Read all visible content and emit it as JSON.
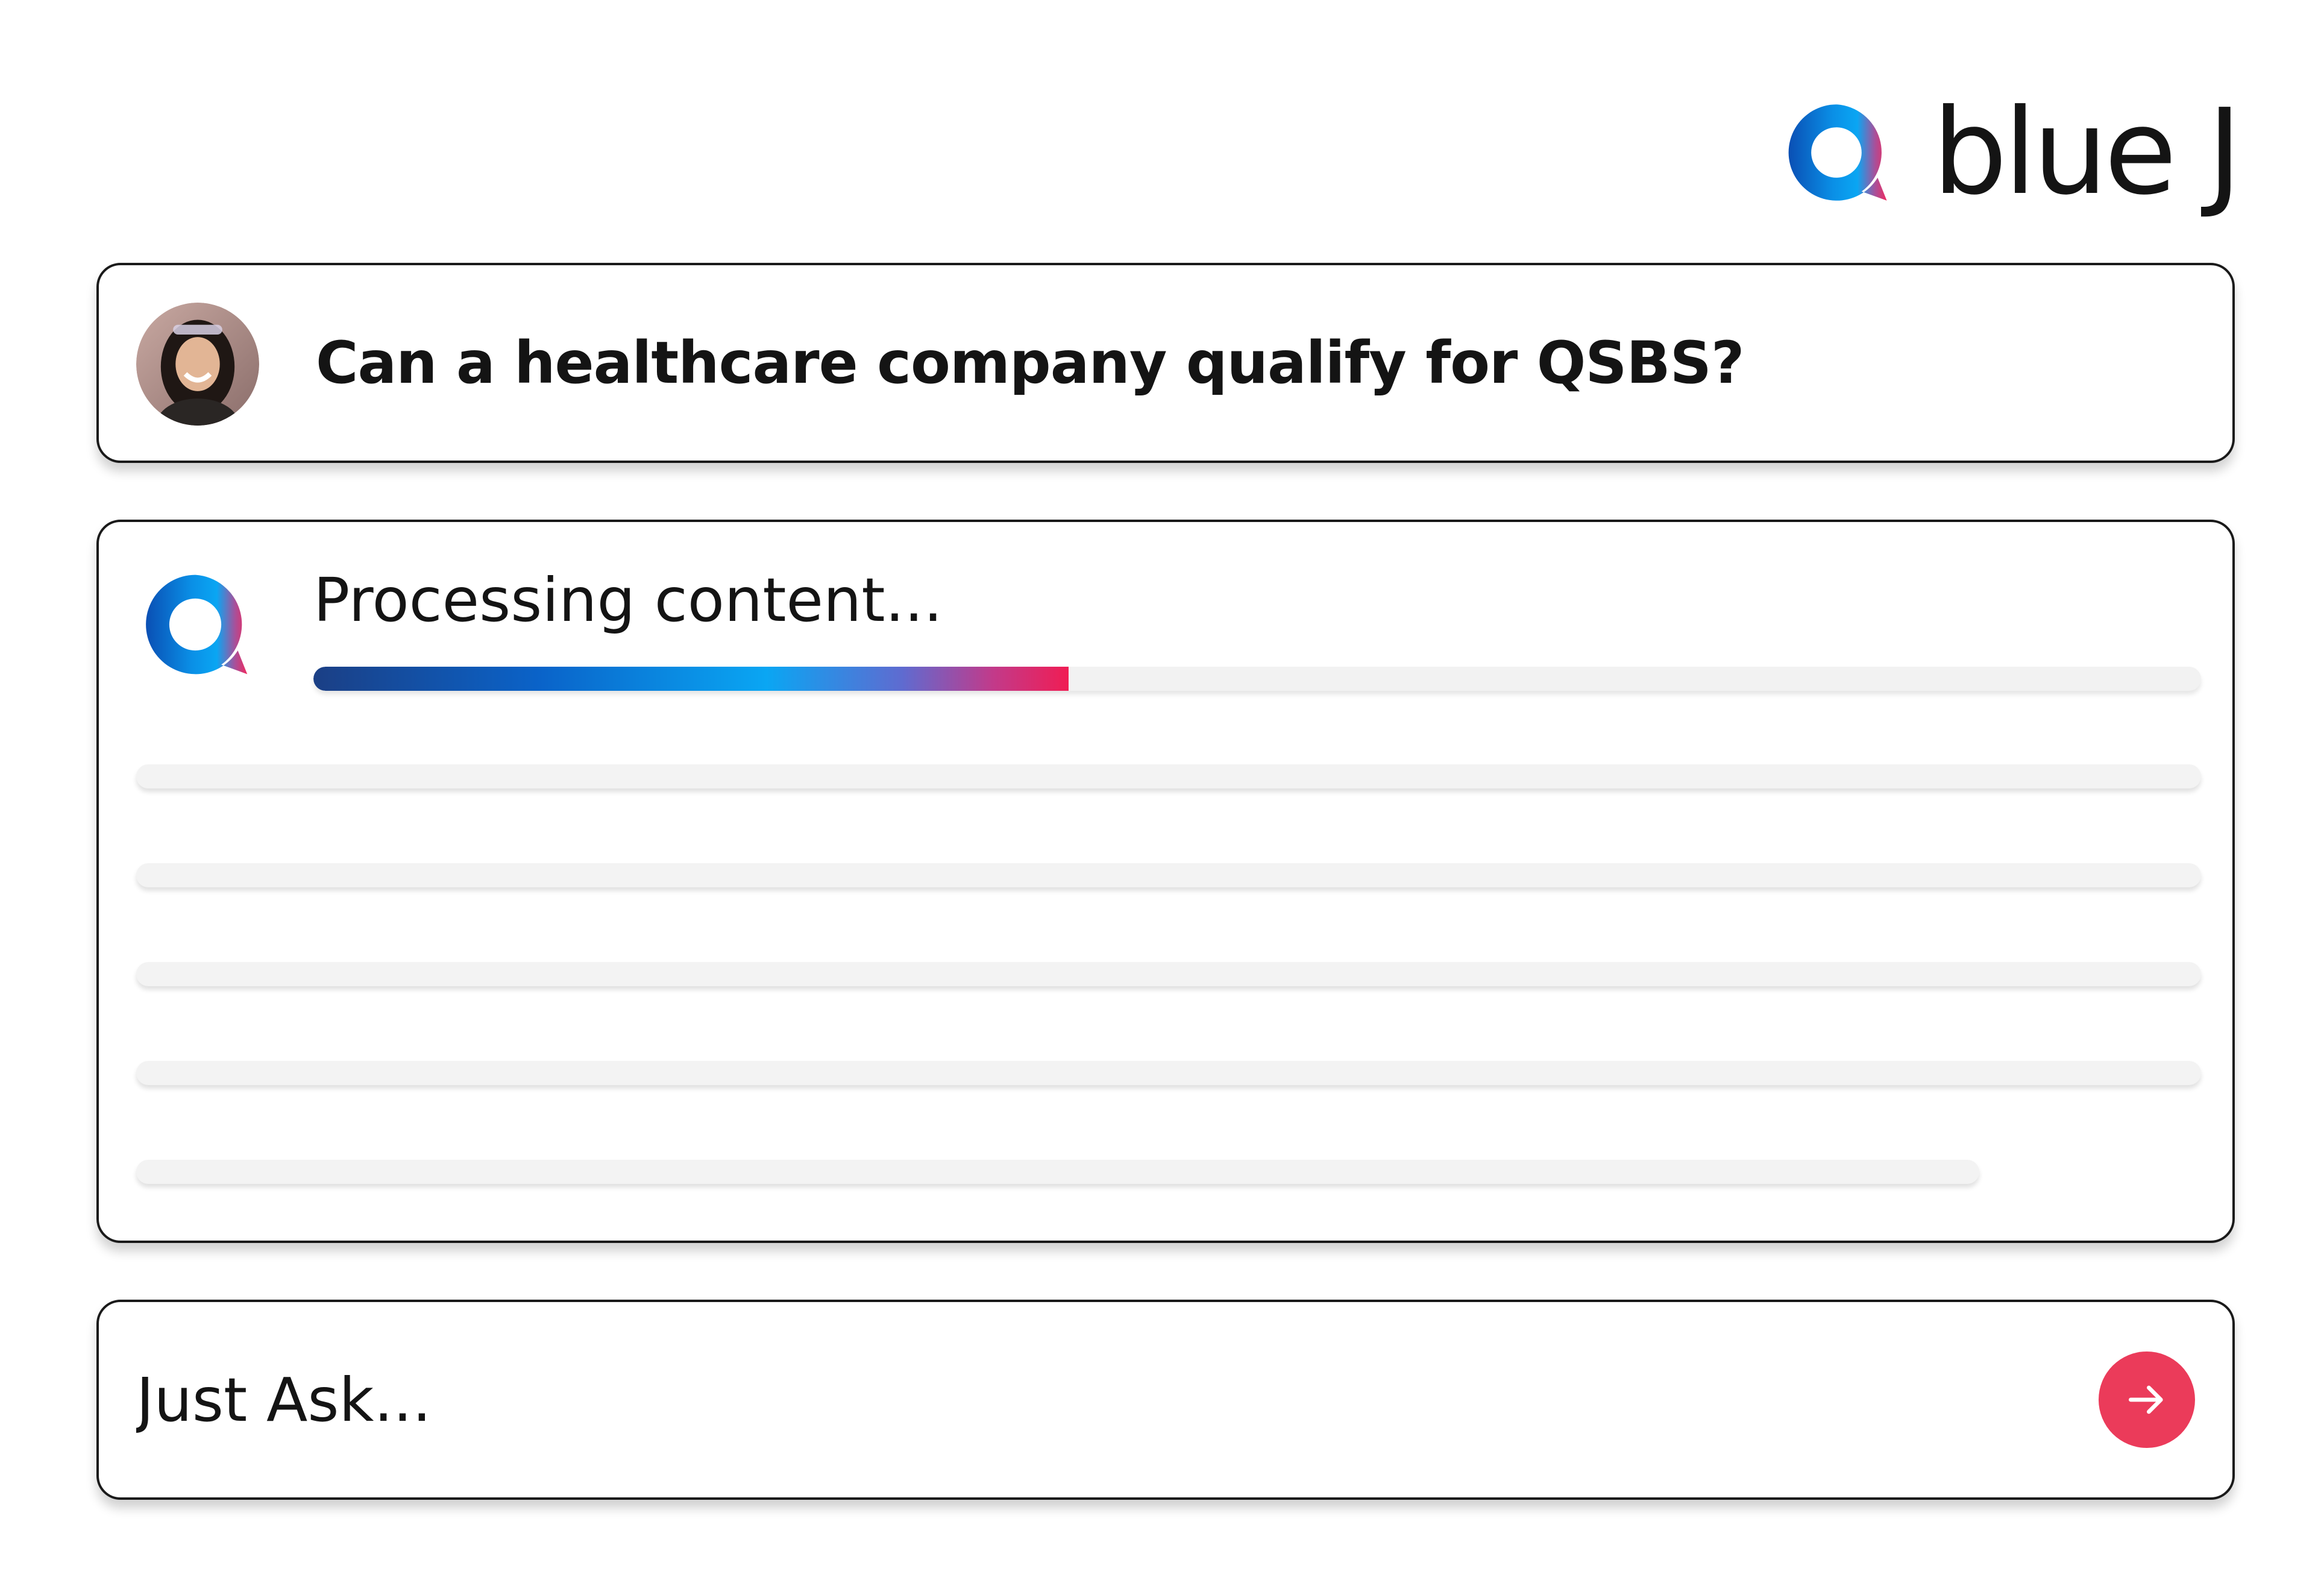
{
  "brand": {
    "name": "blue J",
    "logo_icon": "speech-bubble-q-icon",
    "colors": {
      "blue_dark": "#0a4fb4",
      "blue_light": "#0aa6f3",
      "pink": "#ef2a5f"
    }
  },
  "question": {
    "avatar_icon": "user-avatar",
    "text": "Can a healthcare company qualify for QSBS?"
  },
  "answer": {
    "icon": "speech-bubble-q-icon",
    "status": "Processing content...",
    "progress": 0.4,
    "progress_colors": [
      "#1b3f85",
      "#0a63c9",
      "#0aa6f3",
      "#c23a8a",
      "#f01d54"
    ],
    "placeholder_lines": 5
  },
  "composer": {
    "placeholder": "Just Ask...",
    "send_icon": "arrow-right-icon",
    "send_color": "#eb3b5a"
  }
}
